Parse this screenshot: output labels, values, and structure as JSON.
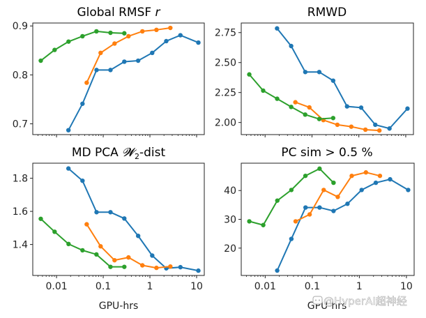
{
  "chart_data": [
    {
      "type": "line",
      "title": "Global RMSF",
      "title_italic_suffix": "r",
      "xlabel": "",
      "ylabel": "",
      "xscale": "log",
      "xlim": [
        0.0031,
        14.6
      ],
      "ylim": [
        0.678,
        0.906
      ],
      "xticks": [
        0.01,
        0.1,
        1,
        10
      ],
      "xtick_labels_visible": false,
      "yticks": [
        0.7,
        0.8,
        0.9
      ],
      "ytick_labels": [
        "0.7",
        "0.8",
        "0.9"
      ],
      "series": [
        {
          "name": "blue",
          "color": "#1f77b4",
          "x": [
            0.018,
            0.036,
            0.072,
            0.143,
            0.283,
            0.56,
            1.12,
            2.24,
            4.5,
            10.9
          ],
          "y": [
            0.687,
            0.741,
            0.81,
            0.81,
            0.827,
            0.829,
            0.845,
            0.869,
            0.881,
            0.866
          ]
        },
        {
          "name": "orange",
          "color": "#ff7f0e",
          "x": [
            0.0443,
            0.088,
            0.175,
            0.348,
            0.69,
            1.38,
            2.74
          ],
          "y": [
            0.784,
            0.845,
            0.864,
            0.879,
            0.889,
            0.892,
            0.896
          ]
        },
        {
          "name": "green",
          "color": "#2ca02c",
          "x": [
            0.0046,
            0.0091,
            0.0181,
            0.036,
            0.0716,
            0.143,
            0.283
          ],
          "y": [
            0.829,
            0.851,
            0.868,
            0.879,
            0.889,
            0.886,
            0.885
          ]
        }
      ]
    },
    {
      "type": "line",
      "title": "RMWD",
      "title_italic_suffix": "",
      "xlabel": "",
      "ylabel": "",
      "xscale": "log",
      "xlim": [
        0.0031,
        14.6
      ],
      "ylim": [
        1.899,
        2.83
      ],
      "xticks": [
        0.01,
        0.1,
        1,
        10
      ],
      "xtick_labels_visible": false,
      "yticks": [
        2.0,
        2.25,
        2.5,
        2.75
      ],
      "ytick_labels": [
        "2.00",
        "2.25",
        "2.50",
        "2.75"
      ],
      "series": [
        {
          "name": "blue",
          "color": "#1f77b4",
          "x": [
            0.018,
            0.036,
            0.072,
            0.143,
            0.283,
            0.56,
            1.12,
            2.24,
            4.5,
            10.9
          ],
          "y": [
            2.785,
            2.638,
            2.421,
            2.421,
            2.349,
            2.134,
            2.124,
            1.981,
            1.95,
            2.116
          ]
        },
        {
          "name": "orange",
          "color": "#ff7f0e",
          "x": [
            0.0443,
            0.088,
            0.175,
            0.348,
            0.69,
            1.38,
            2.74
          ],
          "y": [
            2.169,
            2.126,
            2.02,
            1.981,
            1.965,
            1.94,
            1.933
          ]
        },
        {
          "name": "green",
          "color": "#2ca02c",
          "x": [
            0.0046,
            0.0091,
            0.0181,
            0.036,
            0.0716,
            0.143,
            0.283
          ],
          "y": [
            2.401,
            2.266,
            2.198,
            2.13,
            2.066,
            2.029,
            2.037
          ]
        }
      ]
    },
    {
      "type": "line",
      "title": "MD PCA",
      "title_math": "𝓦",
      "title_math_sub": "2",
      "title_suffix": "-dist",
      "xlabel": "GPU-hrs",
      "ylabel": "",
      "xscale": "log",
      "xlim": [
        0.0031,
        14.6
      ],
      "ylim": [
        1.213,
        1.891
      ],
      "xticks": [
        0.01,
        0.1,
        1,
        10
      ],
      "xtick_labels": [
        "0.01",
        "0.1",
        "1",
        "10"
      ],
      "xtick_labels_visible": true,
      "yticks": [
        1.4,
        1.6,
        1.8
      ],
      "ytick_labels": [
        "1.4",
        "1.6",
        "1.8"
      ],
      "series": [
        {
          "name": "blue",
          "color": "#1f77b4",
          "x": [
            0.018,
            0.036,
            0.072,
            0.143,
            0.283,
            0.56,
            1.12,
            2.24,
            4.5,
            10.9
          ],
          "y": [
            1.859,
            1.785,
            1.595,
            1.595,
            1.557,
            1.452,
            1.333,
            1.256,
            1.263,
            1.242
          ]
        },
        {
          "name": "orange",
          "color": "#ff7f0e",
          "x": [
            0.0443,
            0.088,
            0.175,
            0.348,
            0.69,
            1.38,
            2.74
          ],
          "y": [
            1.522,
            1.389,
            1.305,
            1.322,
            1.274,
            1.259,
            1.267
          ]
        },
        {
          "name": "green",
          "color": "#2ca02c",
          "x": [
            0.0046,
            0.0091,
            0.0181,
            0.036,
            0.0716,
            0.143,
            0.283
          ],
          "y": [
            1.555,
            1.477,
            1.403,
            1.365,
            1.34,
            1.265,
            1.265
          ]
        }
      ]
    },
    {
      "type": "line",
      "title": "PC sim > 0.5 %",
      "title_italic_suffix": "",
      "xlabel": "GPU-hrs",
      "ylabel": "",
      "xscale": "log",
      "xlim": [
        0.0031,
        14.6
      ],
      "ylim": [
        10.5,
        49.5
      ],
      "xticks": [
        0.01,
        0.1,
        1,
        10
      ],
      "xtick_labels": [
        "0.01",
        "0.1",
        "1",
        "10"
      ],
      "xtick_labels_visible": true,
      "yticks": [
        20,
        30,
        40
      ],
      "ytick_labels": [
        "20",
        "30",
        "40"
      ],
      "series": [
        {
          "name": "blue",
          "color": "#1f77b4",
          "x": [
            0.018,
            0.036,
            0.072,
            0.143,
            0.283,
            0.56,
            1.12,
            2.24,
            4.5,
            10.9
          ],
          "y": [
            12.2,
            23.2,
            34.1,
            34.1,
            32.9,
            35.4,
            40.2,
            42.7,
            43.9,
            40.2
          ]
        },
        {
          "name": "orange",
          "color": "#ff7f0e",
          "x": [
            0.0443,
            0.088,
            0.175,
            0.348,
            0.69,
            1.38,
            2.74
          ],
          "y": [
            29.3,
            31.7,
            40.2,
            37.8,
            45.1,
            46.3,
            45.1
          ]
        },
        {
          "name": "green",
          "color": "#2ca02c",
          "x": [
            0.0046,
            0.0091,
            0.0181,
            0.036,
            0.0716,
            0.143,
            0.283
          ],
          "y": [
            29.3,
            28.0,
            36.5,
            40.2,
            45.1,
            47.6,
            42.7
          ]
        }
      ]
    }
  ],
  "watermark": {
    "text": "@HyperAI超神经",
    "icon": "chat-bubble-icon"
  }
}
